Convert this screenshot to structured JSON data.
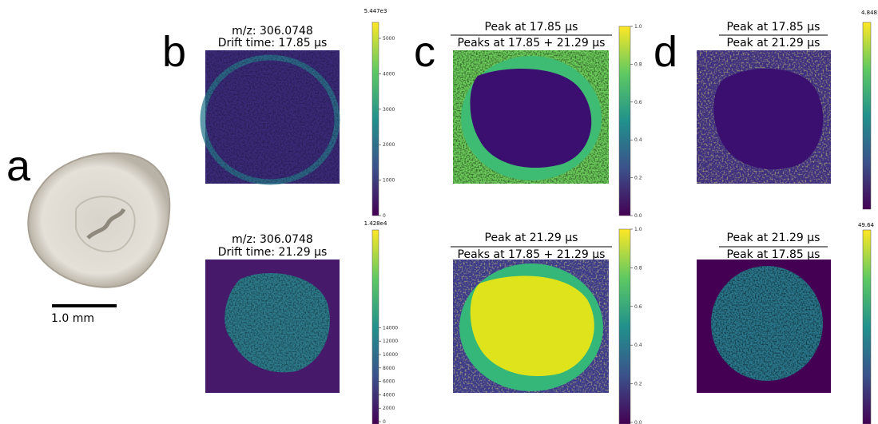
{
  "panel_a": {
    "label": "a",
    "scale_bar": "1.0 mm"
  },
  "panel_b": {
    "label": "b",
    "top": {
      "title": [
        "m/z: 306.0748",
        "Drift time: 17.85 µs"
      ],
      "colorbar_max": "5.447e3",
      "colorbar_ticks": [
        "5000",
        "4000",
        "3000",
        "2000",
        "1000",
        "0"
      ]
    },
    "bottom": {
      "title": [
        "m/z: 306.0748",
        "Drift time: 21.29 µs"
      ],
      "colorbar_max": "1.428e4",
      "colorbar_ticks": [
        "14000",
        "12000",
        "10000",
        "8000",
        "6000",
        "4000",
        "2000",
        "0"
      ]
    }
  },
  "panel_c": {
    "label": "c",
    "top": {
      "numerator": "Peak at 17.85 µs",
      "denominator": "Peaks at 17.85 + 21.29 µs",
      "colorbar_ticks": [
        "1.0",
        "0.8",
        "0.6",
        "0.4",
        "0.2",
        "0.0"
      ]
    },
    "bottom": {
      "numerator": "Peak at 21.29 µs",
      "denominator": "Peaks at 17.85 + 21.29 µs",
      "colorbar_ticks": [
        "1.0",
        "0.8",
        "0.6",
        "0.4",
        "0.2",
        "0.0"
      ]
    }
  },
  "panel_d": {
    "label": "d",
    "top": {
      "numerator": "Peak at 17.85 µs",
      "denominator": "Peak at 21.29 µs",
      "colorbar_max": "4.848"
    },
    "bottom": {
      "numerator": "Peak at 21.29 µs",
      "denominator": "Peak at 17.85 µs",
      "colorbar_max": "49.64"
    }
  }
}
